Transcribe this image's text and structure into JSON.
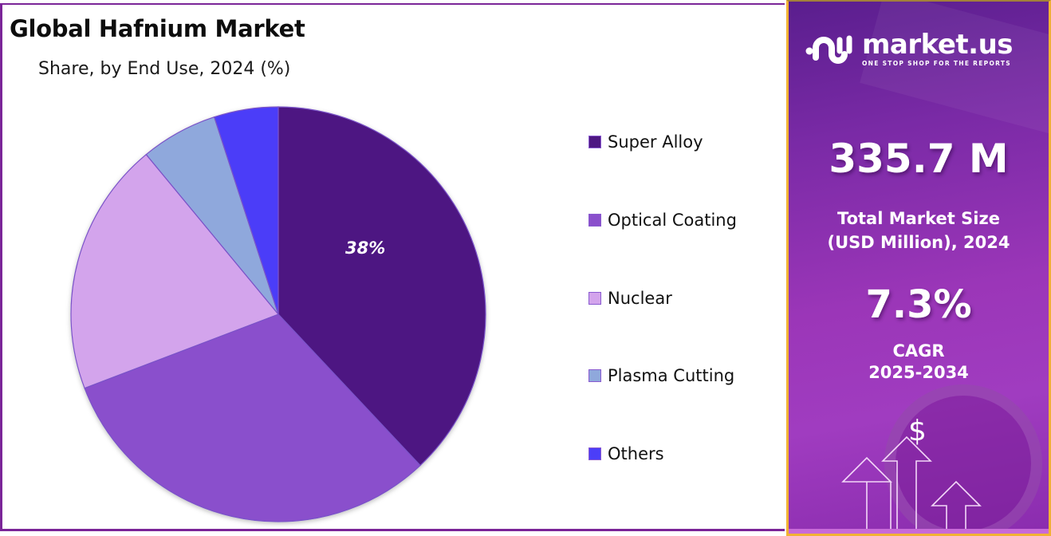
{
  "chart_data": {
    "type": "pie",
    "title": "Global Hafnium Market",
    "subtitle": "Share, by End Use, 2024 (%)",
    "categories": [
      "Super Alloy",
      "Optical Coating",
      "Nuclear",
      "Plasma Cutting",
      "Others"
    ],
    "values": [
      38,
      31.2,
      19.8,
      6,
      5
    ],
    "colors": [
      "#4e1782",
      "#8a4fcc",
      "#d3a4ec",
      "#8fa8dc",
      "#4b3ef8"
    ],
    "data_labels": [
      {
        "category": "Super Alloy",
        "text": "38%"
      }
    ],
    "legend_position": "right",
    "start_angle": "12 o'clock, clockwise"
  },
  "header": {
    "title": "Global Hafnium Market",
    "subtitle": "Share, by End Use, 2024 (%)"
  },
  "pie": {
    "label_super_alloy": "38%"
  },
  "legend": [
    {
      "label": "Super Alloy",
      "color": "#4e1782"
    },
    {
      "label": "Optical Coating",
      "color": "#8a4fcc"
    },
    {
      "label": "Nuclear",
      "color": "#d3a4ec"
    },
    {
      "label": "Plasma Cutting",
      "color": "#8fa8dc"
    },
    {
      "label": "Others",
      "color": "#4b3ef8"
    }
  ],
  "info_panel": {
    "brand_name": "market.us",
    "brand_tagline": "ONE STOP SHOP FOR THE REPORTS",
    "market_size_value": "335.7 M",
    "market_size_label_line1": "Total Market Size",
    "market_size_label_line2": "(USD Million), 2024",
    "cagr_value": "7.3%",
    "cagr_label_line1": "CAGR",
    "cagr_label_line2": "2025-2034",
    "dollar_symbol": "$"
  },
  "colors": {
    "frame_border": "#7b2598",
    "panel_border": "#f2b234",
    "panel_bg_top": "#5a1e8e",
    "panel_bg_bottom": "#a03cc0"
  }
}
